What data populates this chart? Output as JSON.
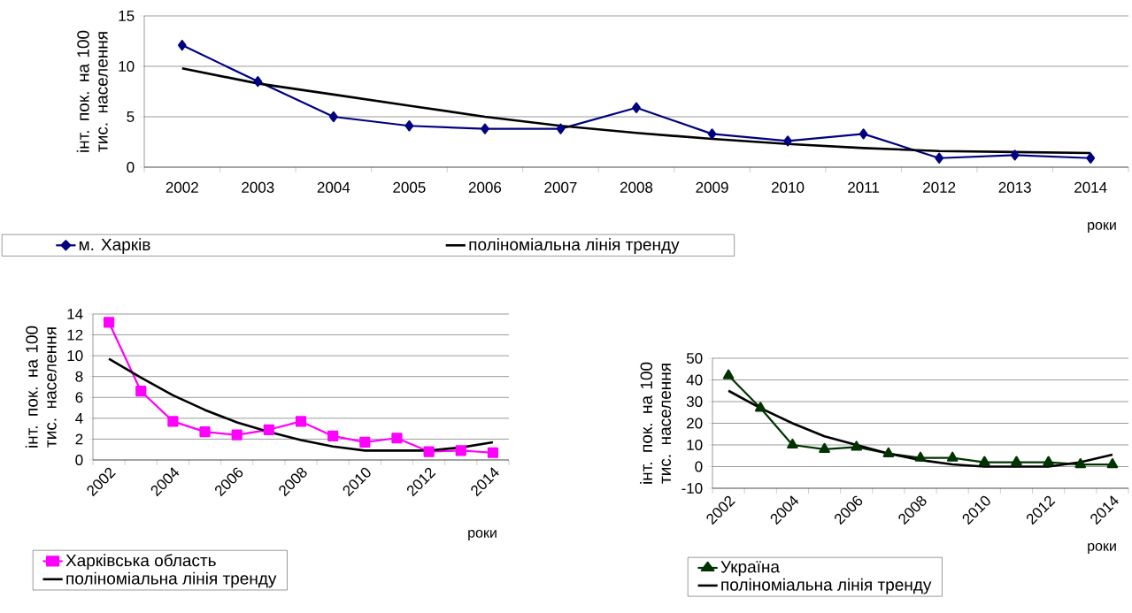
{
  "chart_data": [
    {
      "type": "line",
      "categories": [
        "2002",
        "2003",
        "2004",
        "2005",
        "2006",
        "2007",
        "2008",
        "2009",
        "2010",
        "2011",
        "2012",
        "2013",
        "2014"
      ],
      "xlabel": "роки",
      "ylabel": "інт. пок. на 100 тис. населення",
      "ylim": [
        0,
        15
      ],
      "yticks": [
        0,
        5,
        10,
        15
      ],
      "grid": "y",
      "legend": "bottom",
      "series": [
        {
          "name": "м. Харків",
          "color": "#000080",
          "marker": "diamond",
          "values": [
            12.1,
            8.5,
            5.0,
            4.1,
            3.8,
            3.8,
            5.9,
            3.3,
            2.6,
            3.3,
            0.9,
            1.2,
            0.9
          ]
        },
        {
          "name": "поліноміальна лінія тренду",
          "color": "#000000",
          "marker": "none",
          "values": [
            9.8,
            8.3,
            7.2,
            6.1,
            5.0,
            4.1,
            3.4,
            2.8,
            2.3,
            1.9,
            1.6,
            1.5,
            1.4
          ]
        }
      ]
    },
    {
      "type": "line",
      "categories": [
        "2002",
        null,
        "2004",
        null,
        "2006",
        null,
        "2008",
        null,
        "2010",
        null,
        "2012",
        null,
        "2014"
      ],
      "xlabel": "роки",
      "ylabel": "інт. пок. на 100 тис. населення",
      "ylim": [
        0,
        14
      ],
      "yticks": [
        0,
        2,
        4,
        6,
        8,
        10,
        12,
        14
      ],
      "grid": "y",
      "legend": "bottom",
      "series": [
        {
          "name": "Харківська область",
          "color": "#ff00ff",
          "marker": "square",
          "values": [
            13.2,
            6.6,
            3.7,
            2.7,
            2.4,
            2.9,
            3.7,
            2.3,
            1.7,
            2.1,
            0.8,
            0.9,
            0.7
          ]
        },
        {
          "name": "поліноміальна лінія тренду",
          "color": "#000000",
          "marker": "none",
          "values": [
            9.7,
            7.9,
            6.2,
            4.8,
            3.6,
            2.7,
            1.9,
            1.3,
            0.9,
            0.9,
            0.9,
            1.2,
            1.7
          ]
        }
      ]
    },
    {
      "type": "line",
      "categories": [
        "2002",
        null,
        "2004",
        null,
        "2006",
        null,
        "2008",
        null,
        "2010",
        null,
        "2012",
        null,
        "2014"
      ],
      "xlabel": "роки",
      "ylabel": "інт. пок. на 100 тис. населення",
      "ylim": [
        -10,
        50
      ],
      "yticks": [
        -10,
        0,
        10,
        20,
        30,
        40,
        50
      ],
      "grid": "y",
      "legend": "bottom",
      "series": [
        {
          "name": "Україна",
          "color": "#003300",
          "marker": "triangle",
          "values": [
            42,
            27,
            10,
            8,
            9,
            6,
            4,
            4,
            2,
            2,
            2,
            1,
            1
          ]
        },
        {
          "name": "поліноміальна лінія тренду",
          "color": "#000000",
          "marker": "none",
          "values": [
            35,
            27,
            20,
            14,
            10,
            6,
            3,
            1,
            0,
            0,
            0,
            2,
            5.5
          ]
        }
      ]
    }
  ]
}
